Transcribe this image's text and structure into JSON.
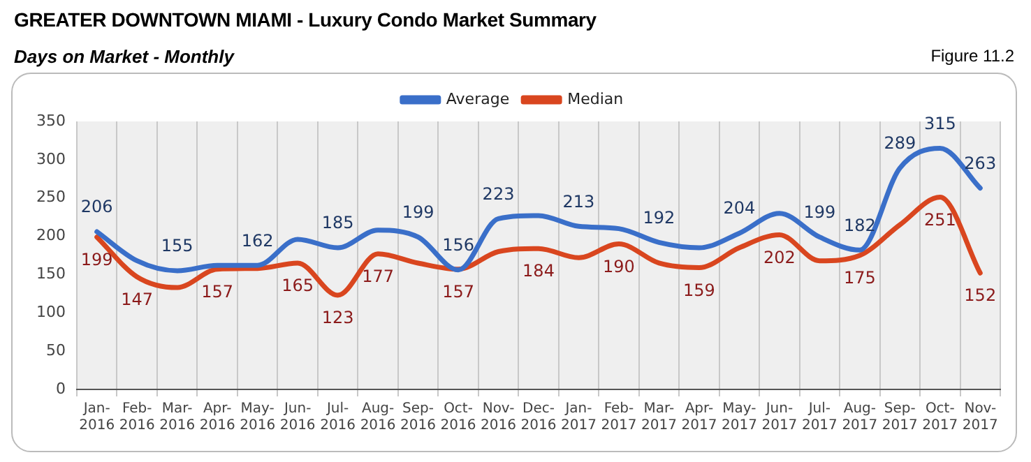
{
  "chart_data": {
    "type": "line",
    "title": "GREATER DOWNTOWN MIAMI - Luxury Condo Market Summary",
    "subtitle": "Days on Market - Monthly",
    "annotations": [
      "Figure 11.2"
    ],
    "categories": [
      "Jan-2016",
      "Feb-2016",
      "Mar-2016",
      "Apr-2016",
      "May-2016",
      "Jun-2016",
      "Jul-2016",
      "Aug-2016",
      "Sep-2016",
      "Oct-2016",
      "Nov-2016",
      "Dec-2016",
      "Jan-2017",
      "Feb-2017",
      "Mar-2017",
      "Apr-2017",
      "May-2017",
      "Jun-2017",
      "Jul-2017",
      "Aug-2017",
      "Sep-2017",
      "Oct-2017",
      "Nov-2017"
    ],
    "series": [
      {
        "name": "Average",
        "color": "#3a6fc9",
        "values": [
          206,
          168,
          155,
          162,
          162,
          196,
          185,
          208,
          199,
          156,
          223,
          227,
          213,
          210,
          192,
          185,
          204,
          230,
          199,
          182,
          289,
          315,
          263
        ],
        "value_labels": [
          "206",
          null,
          "155",
          null,
          "162",
          null,
          "185",
          null,
          "199",
          "156",
          "223",
          null,
          "213",
          null,
          "192",
          null,
          "204",
          null,
          "199",
          "182",
          "289",
          "315",
          "263"
        ]
      },
      {
        "name": "Median",
        "color": "#d9461f",
        "values": [
          199,
          147,
          133,
          157,
          158,
          165,
          123,
          177,
          165,
          157,
          180,
          184,
          172,
          190,
          165,
          159,
          185,
          202,
          168,
          175,
          215,
          251,
          152
        ],
        "value_labels": [
          "199",
          "147",
          null,
          "157",
          null,
          "165",
          "123",
          "177",
          null,
          "157",
          null,
          "184",
          null,
          "190",
          null,
          "159",
          null,
          "202",
          null,
          "175",
          null,
          "251",
          "152"
        ]
      }
    ],
    "ylim": [
      0,
      350
    ],
    "yticks": [
      0,
      50,
      100,
      150,
      200,
      250,
      300,
      350
    ],
    "grid": "x",
    "legend": "top",
    "marker": "none",
    "line_style": "solid"
  }
}
